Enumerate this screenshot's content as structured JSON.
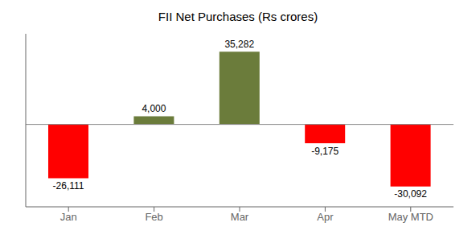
{
  "chart_data": {
    "type": "bar",
    "title": "FII Net Purchases (Rs crores)",
    "categories": [
      "Jan",
      "Feb",
      "Mar",
      "Apr",
      "May MTD"
    ],
    "values": [
      -26111,
      4000,
      35282,
      -9175,
      -30092
    ],
    "value_labels": [
      "-26,111",
      "4,000",
      "35,282",
      "-9,175",
      "-30,092"
    ],
    "colors": [
      "#ff0000",
      "#6b7c3b",
      "#6b7c3b",
      "#ff0000",
      "#ff0000"
    ],
    "ylim": [
      -40000,
      44000
    ],
    "data_labels": true,
    "tick_labels": "x",
    "grid": false
  }
}
